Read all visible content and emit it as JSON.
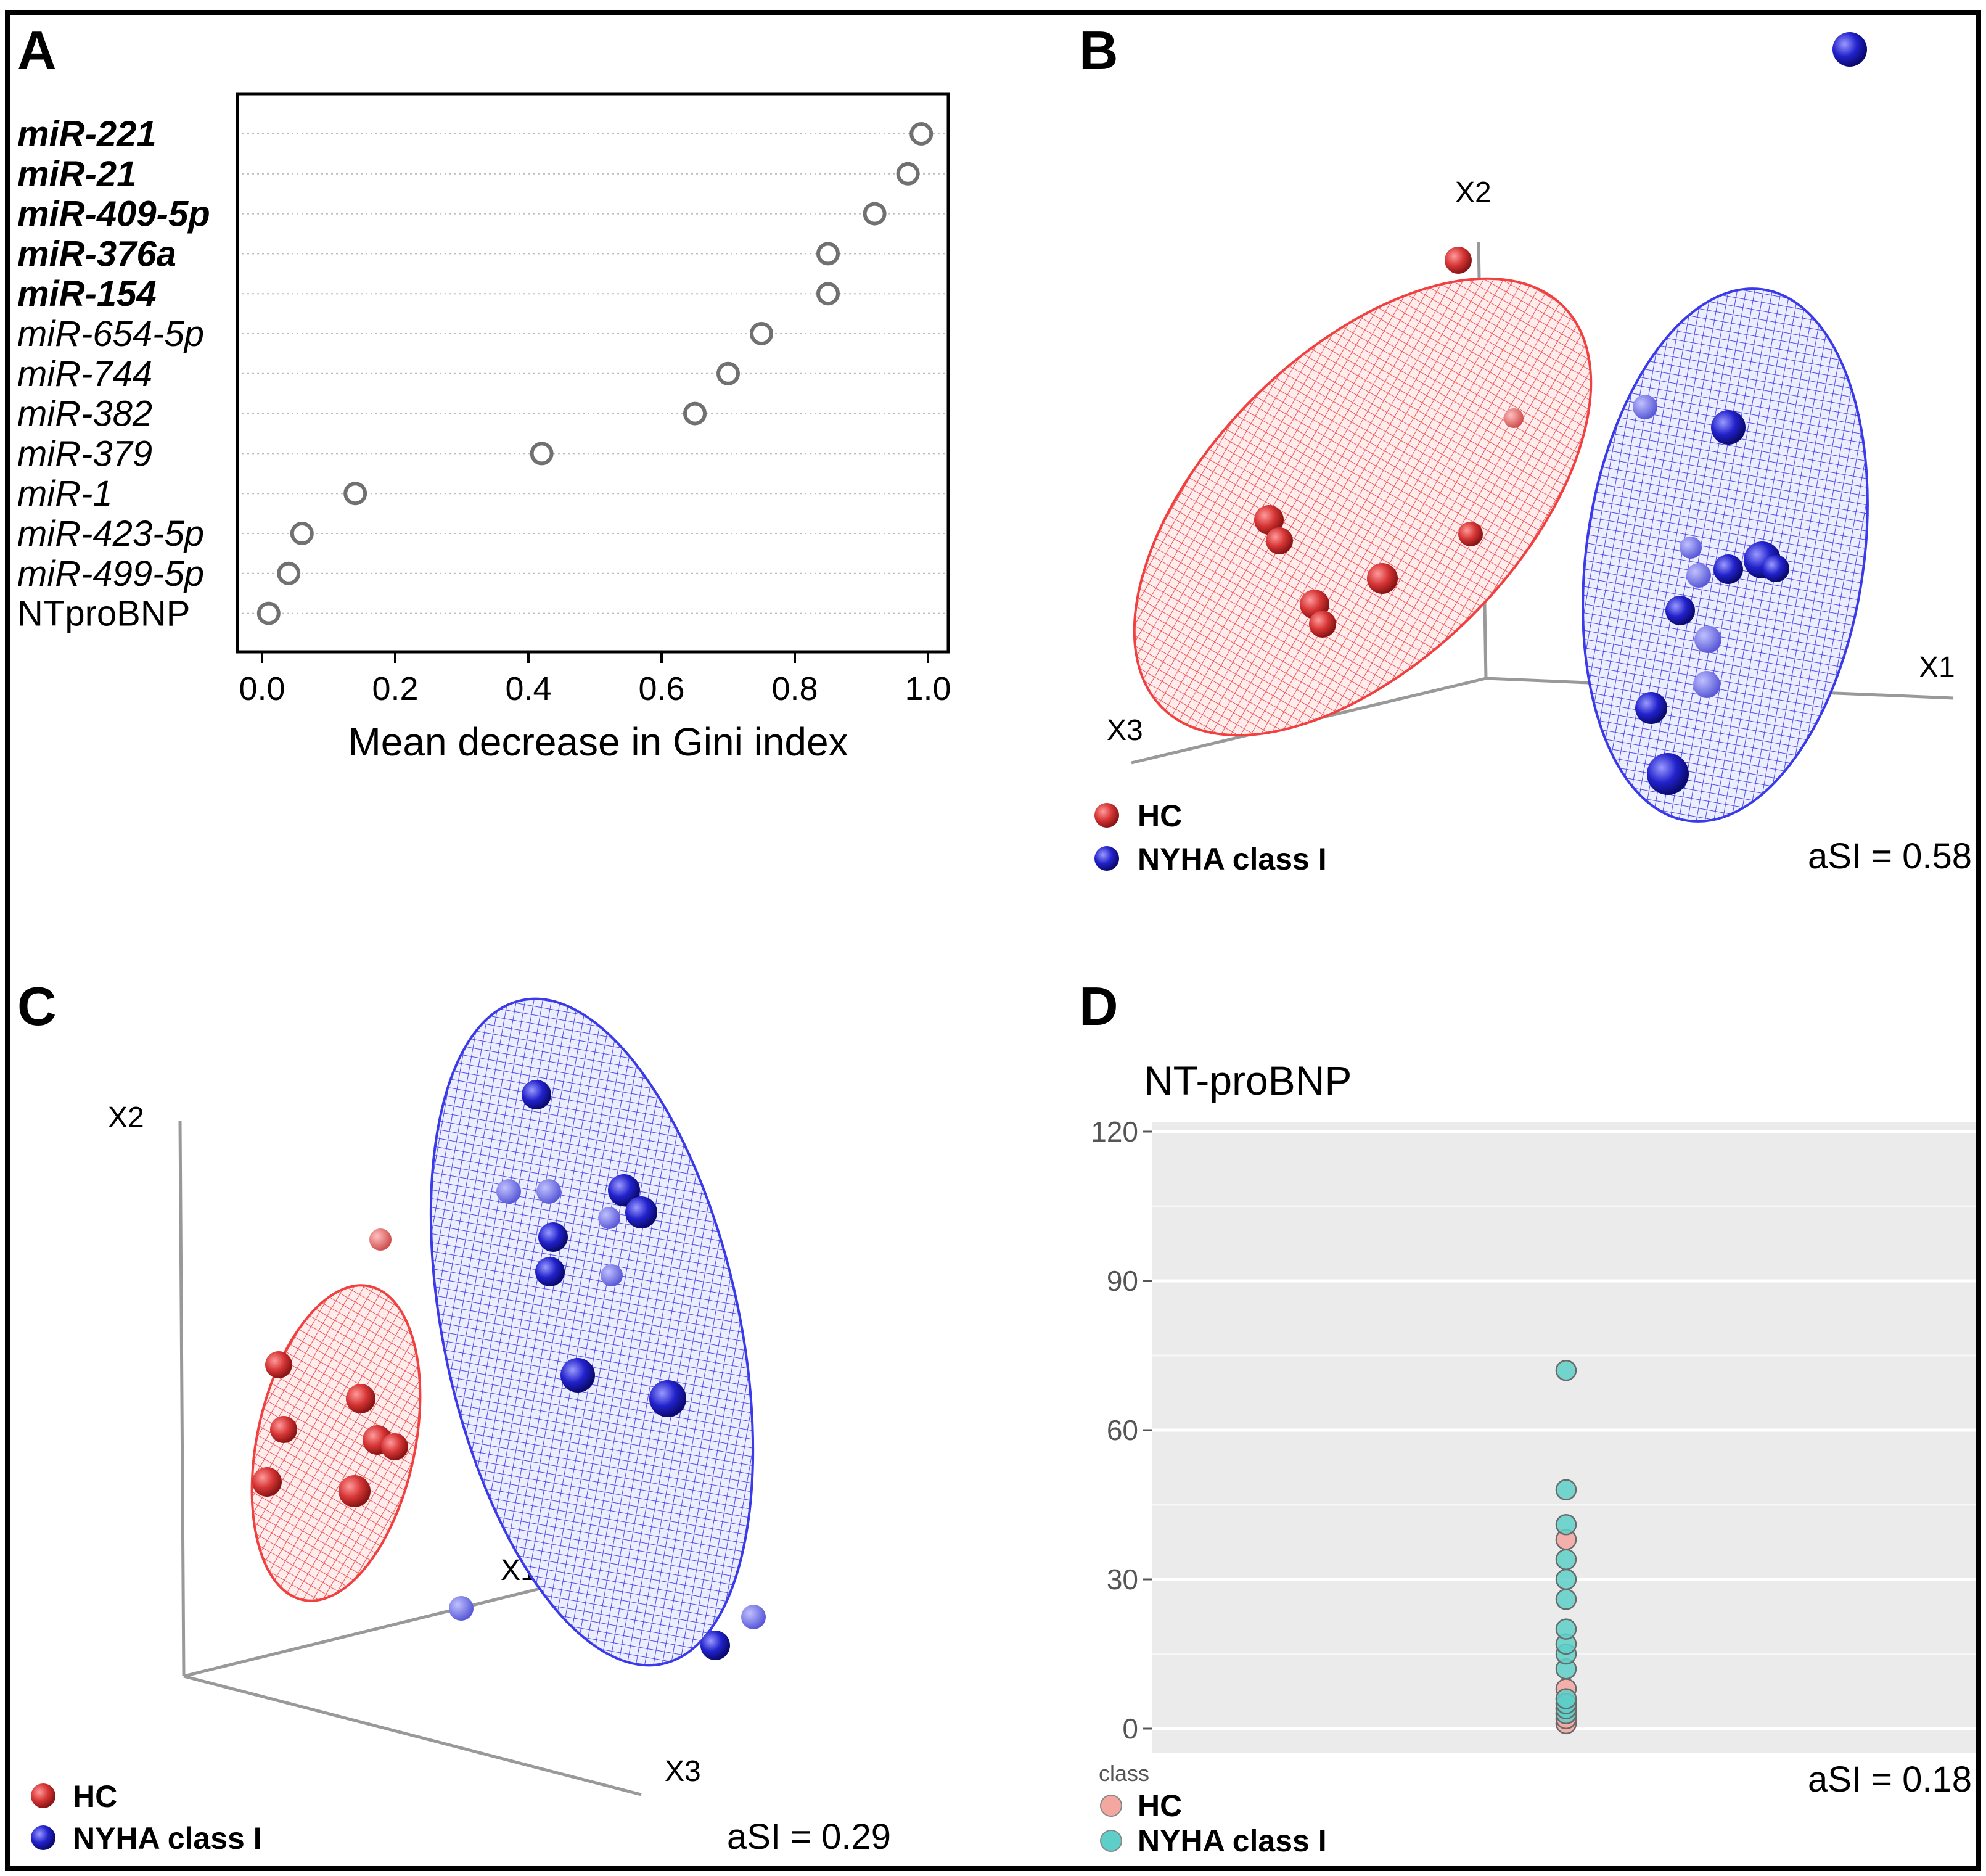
{
  "panels": {
    "A": "A",
    "B": "B",
    "C": "C",
    "D": "D"
  },
  "colors": {
    "hc_red": "#e03c3c",
    "nyha_blue": "#2a2ad8",
    "ellipse_red": "#f04040",
    "ellipse_blue": "#3a3ae8",
    "hc_pink": "#f4a6a0",
    "nyha_teal": "#5ecfc8",
    "panel_bg_d": "#ebebeb"
  },
  "legend_3d": {
    "hc": "HC",
    "nyha": "NYHA class I"
  },
  "legend_d": {
    "title": "class",
    "hc": "HC",
    "nyha": "NYHA class I"
  },
  "axes_3d": {
    "x1": "X1",
    "x2": "X2",
    "x3": "X3"
  },
  "asi": {
    "B": "aSI = 0.58",
    "C": "aSI = 0.29",
    "D": "aSI = 0.18"
  },
  "chart_data": [
    {
      "panel": "A",
      "type": "scatter",
      "title": "",
      "xlabel": "Mean decrease in Gini index",
      "ylabel": "",
      "xlim": [
        -0.04,
        1.03
      ],
      "xticks": [
        "0.0",
        "0.2",
        "0.4",
        "0.6",
        "0.8",
        "1.0"
      ],
      "xtick_values": [
        0.0,
        0.2,
        0.4,
        0.6,
        0.8,
        1.0
      ],
      "grid": "horizontal dotted",
      "categories": [
        "miR-221",
        "miR-21",
        "miR-409-5p",
        "miR-376a",
        "miR-154",
        "miR-654-5p",
        "miR-744",
        "miR-382",
        "miR-379",
        "miR-1",
        "miR-423-5p",
        "miR-499-5p",
        "NTproBNP"
      ],
      "bold": [
        true,
        true,
        true,
        true,
        true,
        false,
        false,
        false,
        false,
        false,
        false,
        false,
        false
      ],
      "italic": [
        true,
        true,
        true,
        true,
        true,
        true,
        true,
        true,
        true,
        true,
        true,
        true,
        false
      ],
      "values": [
        0.99,
        0.97,
        0.92,
        0.85,
        0.85,
        0.75,
        0.7,
        0.65,
        0.42,
        0.14,
        0.06,
        0.04,
        0.01
      ]
    },
    {
      "panel": "B",
      "type": "scatter",
      "title": "3D scatter with ellipsoids",
      "axes": [
        "X1",
        "X2",
        "X3"
      ],
      "legend": [
        "HC",
        "NYHA class I"
      ]
    },
    {
      "panel": "C",
      "type": "scatter",
      "title": "3D scatter with ellipsoids",
      "axes": [
        "X1",
        "X2",
        "X3"
      ],
      "legend": [
        "HC",
        "NYHA class I"
      ]
    },
    {
      "panel": "D",
      "type": "scatter",
      "title": "NT-proBNP",
      "xlabel": "",
      "ylabel": "",
      "ylim": [
        -4,
        127
      ],
      "yticks": [
        "0",
        "30",
        "60",
        "90",
        "120"
      ],
      "ytick_values": [
        0,
        30,
        60,
        90,
        120
      ],
      "legend_title": "class",
      "series": [
        {
          "name": "HC",
          "values": [
            1,
            2,
            3,
            4,
            6,
            8,
            38
          ]
        },
        {
          "name": "NYHA class I",
          "values": [
            3,
            4,
            5,
            6,
            12,
            15,
            17,
            20,
            26,
            30,
            34,
            41,
            48,
            72
          ]
        }
      ]
    }
  ]
}
